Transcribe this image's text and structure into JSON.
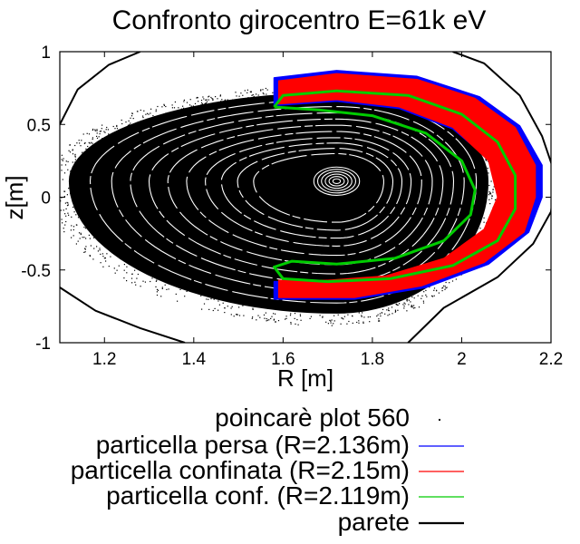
{
  "chart_data": {
    "type": "scatter",
    "title": "Confronto girocentro E=61k eV",
    "xlabel": "R [m]",
    "ylabel": "z[m]",
    "xlim": [
      1.1,
      2.2
    ],
    "ylim": [
      -1,
      1
    ],
    "x_ticks": [
      1.2,
      1.4,
      1.6,
      1.8,
      2,
      2.2
    ],
    "y_ticks": [
      -1,
      -0.5,
      0,
      0.5,
      1
    ],
    "x_tick_labels": [
      "1.2",
      "1.4",
      "1.6",
      "1.8",
      "2",
      "2.2"
    ],
    "y_tick_labels": [
      "-1",
      "-0.5",
      "0",
      "0.5",
      "1"
    ],
    "grid": false,
    "legend_position": "bottom-outside",
    "magnetic_axis": [
      1.72,
      0.11
    ],
    "series": [
      {
        "name": "poincarè plot 560",
        "color": "#000000",
        "style": "points",
        "approx_extent": {
          "R": [
            1.1,
            2.06
          ],
          "z": [
            -0.8,
            0.72
          ]
        }
      },
      {
        "name": "particella persa (R=2.136m)",
        "color": "#0000ff",
        "style": "points",
        "start_R": 2.136,
        "inner_path": [
          [
            1.58,
            0.63
          ],
          [
            1.72,
            0.66
          ],
          [
            1.86,
            0.61
          ],
          [
            1.98,
            0.47
          ],
          [
            2.07,
            0.24
          ],
          [
            2.09,
            0.0
          ],
          [
            2.06,
            -0.22
          ],
          [
            1.97,
            -0.42
          ],
          [
            1.84,
            -0.55
          ],
          [
            1.7,
            -0.58
          ],
          [
            1.58,
            -0.58
          ]
        ],
        "outer_path": [
          [
            1.58,
            0.82
          ],
          [
            1.72,
            0.87
          ],
          [
            1.9,
            0.83
          ],
          [
            2.04,
            0.69
          ],
          [
            2.13,
            0.49
          ],
          [
            2.18,
            0.22
          ],
          [
            2.18,
            0.0
          ],
          [
            2.15,
            -0.24
          ],
          [
            2.06,
            -0.46
          ],
          [
            1.92,
            -0.62
          ],
          [
            1.76,
            -0.7
          ],
          [
            1.58,
            -0.7
          ]
        ]
      },
      {
        "name": "particella confinata (R=2.15m)",
        "color": "#ff0000",
        "style": "points",
        "start_R": 2.15,
        "inner_path": [
          [
            1.59,
            0.64
          ],
          [
            1.72,
            0.67
          ],
          [
            1.86,
            0.62
          ],
          [
            1.98,
            0.48
          ],
          [
            2.06,
            0.25
          ],
          [
            2.08,
            0.0
          ],
          [
            2.05,
            -0.22
          ],
          [
            1.96,
            -0.42
          ],
          [
            1.83,
            -0.54
          ],
          [
            1.7,
            -0.57
          ],
          [
            1.59,
            -0.57
          ]
        ],
        "outer_path": [
          [
            1.59,
            0.8
          ],
          [
            1.72,
            0.85
          ],
          [
            1.9,
            0.81
          ],
          [
            2.03,
            0.68
          ],
          [
            2.12,
            0.48
          ],
          [
            2.165,
            0.22
          ],
          [
            2.165,
            0.0
          ],
          [
            2.14,
            -0.24
          ],
          [
            2.05,
            -0.45
          ],
          [
            1.91,
            -0.61
          ],
          [
            1.76,
            -0.69
          ],
          [
            1.59,
            -0.69
          ]
        ]
      },
      {
        "name": "particella conf. (R=2.119m)",
        "color": "#00cc00",
        "style": "lines",
        "start_R": 2.119,
        "path": [
          [
            1.58,
            0.62
          ],
          [
            1.6,
            0.7
          ],
          [
            1.72,
            0.73
          ],
          [
            1.88,
            0.7
          ],
          [
            2.0,
            0.57
          ],
          [
            2.08,
            0.38
          ],
          [
            2.12,
            0.15
          ],
          [
            2.12,
            -0.08
          ],
          [
            2.08,
            -0.3
          ],
          [
            1.98,
            -0.47
          ],
          [
            1.84,
            -0.56
          ],
          [
            1.7,
            -0.58
          ],
          [
            1.6,
            -0.56
          ],
          [
            1.58,
            -0.48
          ],
          [
            1.62,
            -0.44
          ],
          [
            1.72,
            -0.46
          ],
          [
            1.85,
            -0.42
          ],
          [
            1.96,
            -0.3
          ],
          [
            2.02,
            -0.12
          ],
          [
            2.03,
            0.05
          ],
          [
            2.0,
            0.25
          ],
          [
            1.92,
            0.44
          ],
          [
            1.8,
            0.56
          ],
          [
            1.68,
            0.6
          ],
          [
            1.58,
            0.62
          ]
        ]
      },
      {
        "name": "parete",
        "color": "#000000",
        "style": "lines",
        "path": [
          [
            1.1,
            0.5
          ],
          [
            1.14,
            0.74
          ],
          [
            1.21,
            0.91
          ],
          [
            1.28,
            1.0
          ]
        ],
        "path2": [
          [
            1.98,
            1.0
          ],
          [
            2.05,
            0.92
          ],
          [
            2.13,
            0.7
          ],
          [
            2.18,
            0.42
          ],
          [
            2.21,
            0.15
          ],
          [
            2.2,
            -0.1
          ],
          [
            2.16,
            -0.32
          ],
          [
            2.08,
            -0.55
          ],
          [
            1.96,
            -0.76
          ],
          [
            1.88,
            -1.0
          ]
        ],
        "path3": [
          [
            1.1,
            -0.62
          ],
          [
            1.18,
            -0.78
          ],
          [
            1.28,
            -0.9
          ],
          [
            1.38,
            -1.0
          ]
        ]
      }
    ]
  }
}
